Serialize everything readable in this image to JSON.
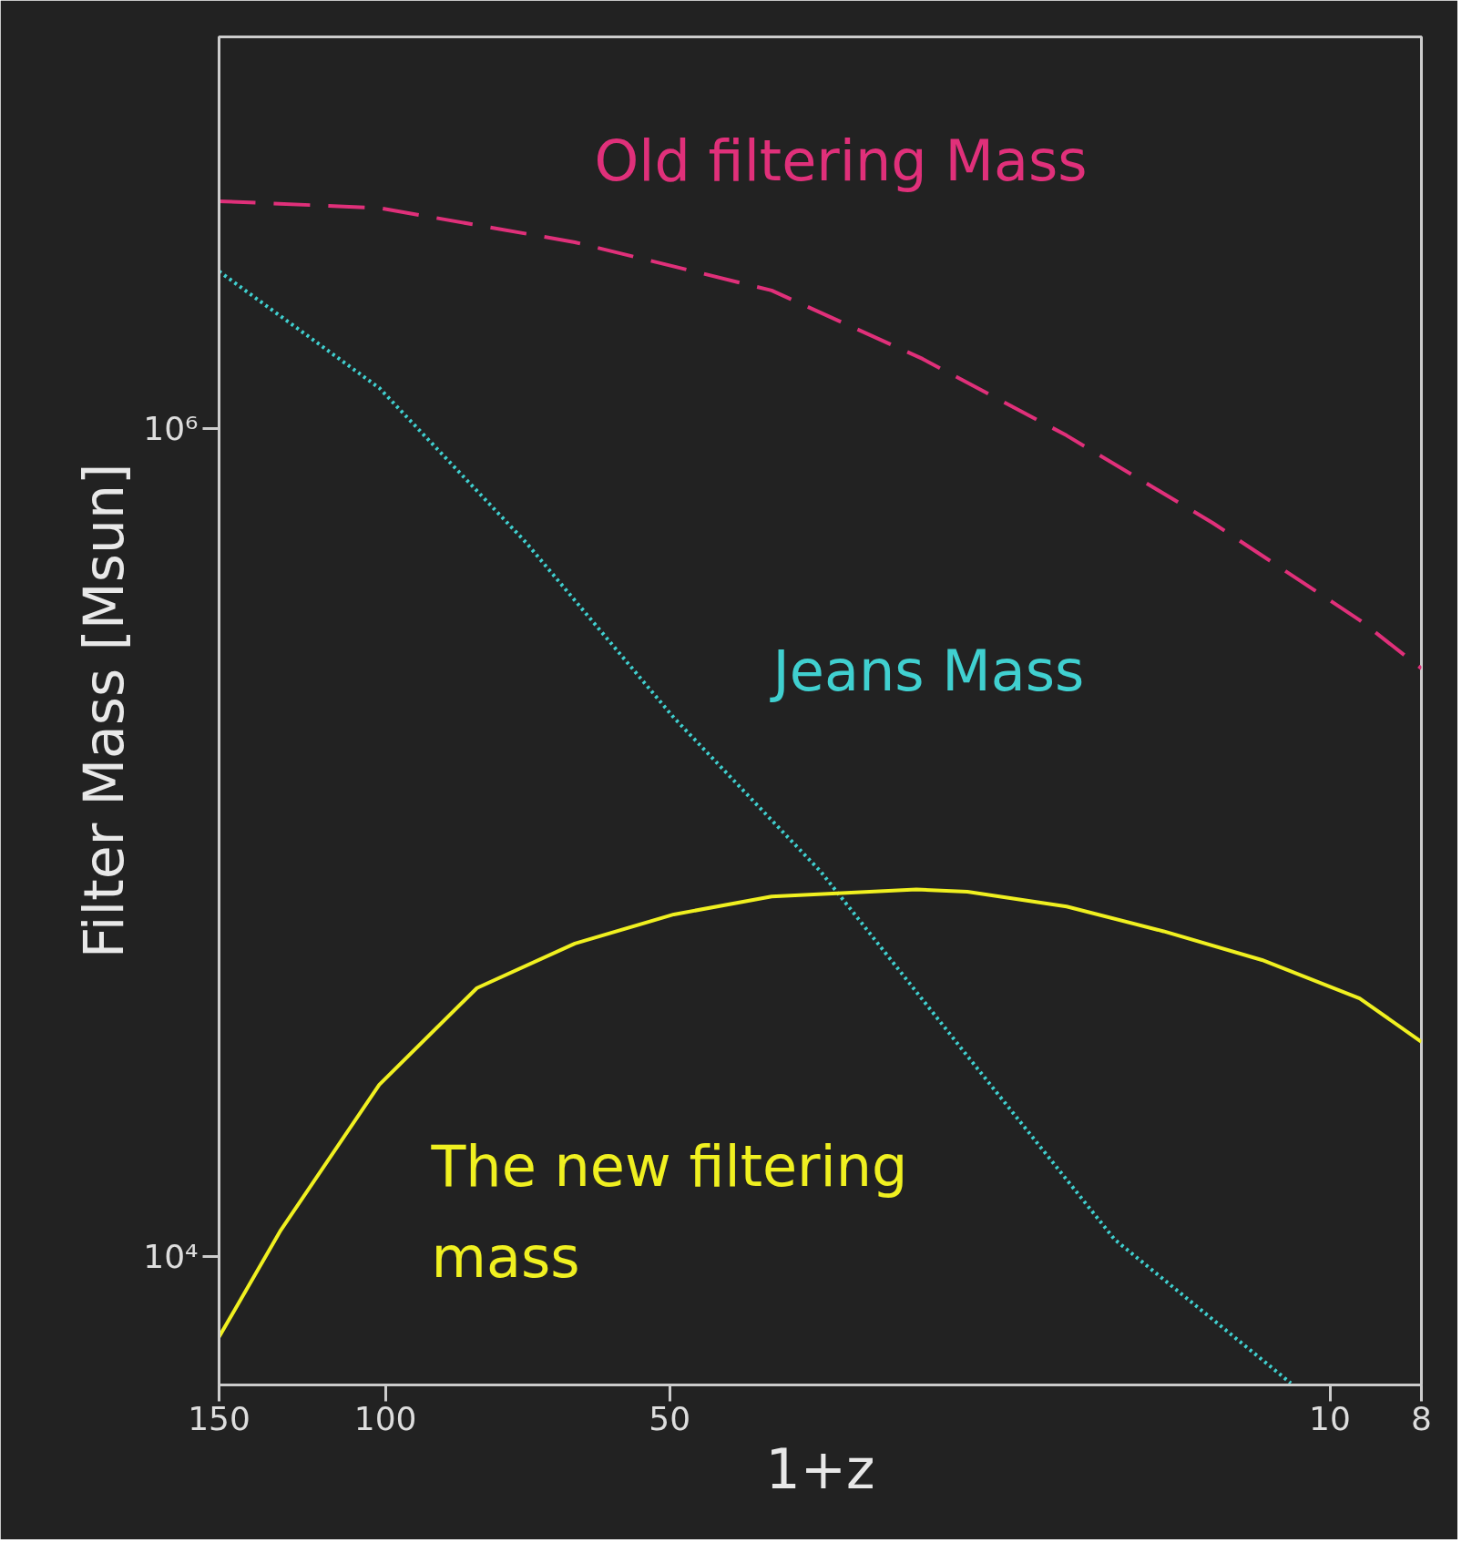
{
  "chart_data": {
    "type": "line",
    "xlabel": "1+z",
    "ylabel": "Filter Mass [Msun]",
    "log": "xy",
    "grid": false,
    "xlim": [
      150,
      8
    ],
    "ylim": [
      4900,
      8800000
    ],
    "xticks": [
      150,
      100,
      50,
      10,
      8
    ],
    "yticks": [
      {
        "value": 10000,
        "label": "10⁴"
      },
      {
        "value": 1000000,
        "label": "10⁶"
      }
    ],
    "series": [
      {
        "color": "#e0307a",
        "line_style": "dashed",
        "x": [
          150,
          101.5,
          63,
          39,
          27,
          19,
          13.3,
          9.3,
          8
        ],
        "values": [
          3530000,
          3400000,
          2810000,
          2150000,
          1470000,
          960000,
          590000,
          344000,
          263000
        ]
      },
      {
        "color": "#40d0d0",
        "line_style": "dotted",
        "x": [
          150,
          101.5,
          71,
          49.5,
          34.6,
          24.2,
          16.9,
          11.0
        ],
        "values": [
          2390000,
          1250000,
          530000,
          200000,
          85000,
          30500,
          11000,
          4950
        ]
      },
      {
        "color": "#f0f020",
        "line_style": "solid",
        "x": [
          150,
          129,
          101.5,
          80,
          63,
          49.5,
          39,
          27.4,
          24.2,
          19,
          15,
          11.8,
          9.3,
          8
        ],
        "values": [
          6400,
          11600,
          26000,
          44500,
          57000,
          67000,
          74000,
          77000,
          76000,
          70000,
          61000,
          52000,
          42000,
          33000
        ]
      }
    ],
    "annotations": [
      "Old filtering Mass",
      "Jeans Mass",
      "The new filtering mass"
    ]
  }
}
